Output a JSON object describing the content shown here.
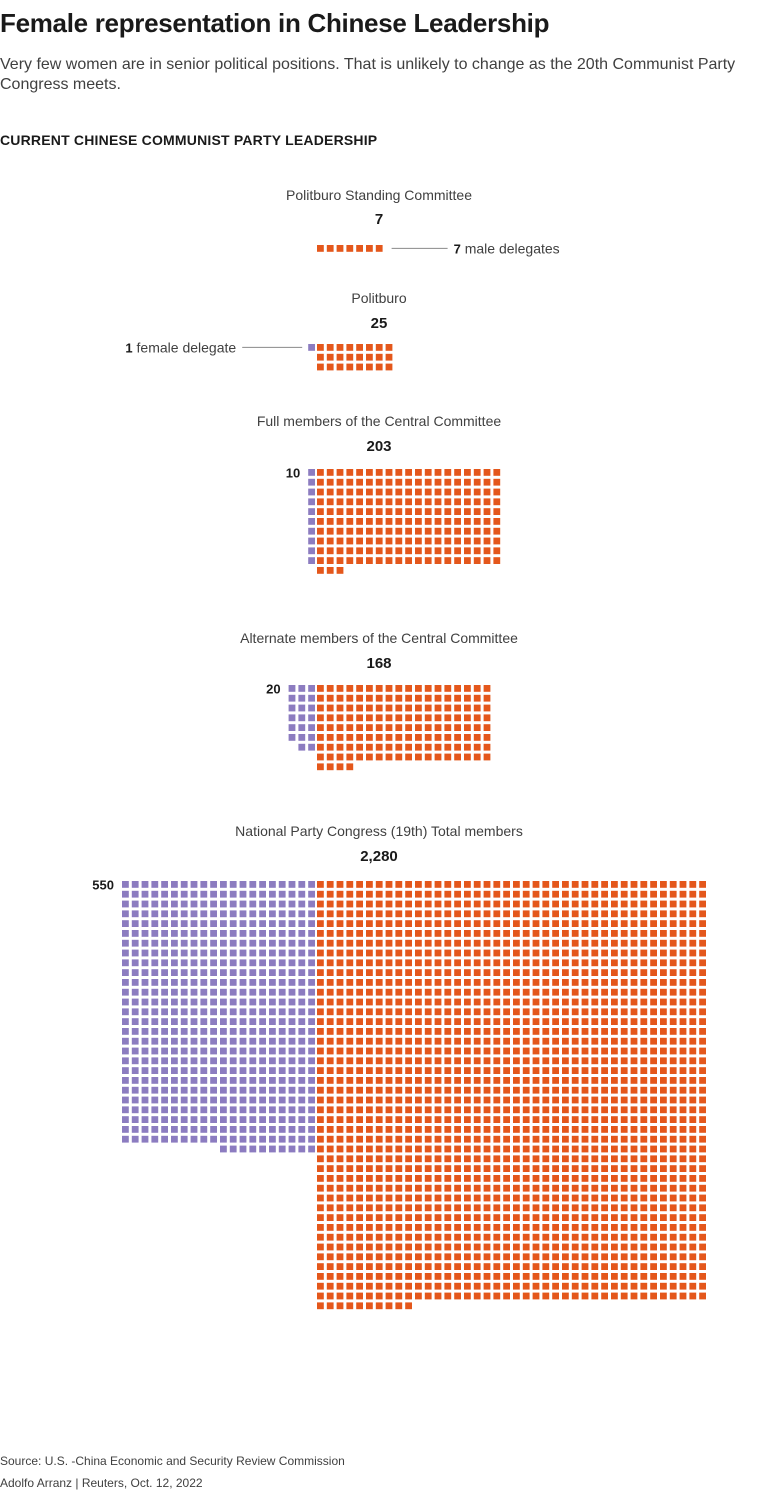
{
  "title": "Female representation in Chinese Leadership",
  "subtitle": "Very few women are in senior political positions. That is unlikely to change as the 20th Communist Party Congress meets.",
  "section_label": "CURRENT CHINESE COMMUNIST PARTY LEADERSHIP",
  "colors": {
    "female": "#8c7cc0",
    "male": "#e4571b",
    "connector": "#8a8a8a"
  },
  "chart_data": {
    "type": "waffle",
    "unit": "delegates",
    "groups": [
      {
        "name": "Politburo Standing Committee",
        "total": 7,
        "total_label": "7",
        "female": 0,
        "male": 7,
        "annotation": {
          "side": "male",
          "number": "7",
          "text": "male delegates"
        }
      },
      {
        "name": "Politburo",
        "total": 25,
        "total_label": "25",
        "female": 1,
        "male": 24,
        "annotation": {
          "side": "female",
          "number": "1",
          "text": "female delegate"
        }
      },
      {
        "name": "Full members of the Central Committee",
        "total": 203,
        "total_label": "203",
        "female": 10,
        "male": 193,
        "annotation": {
          "side": "female",
          "number": "10",
          "text": ""
        }
      },
      {
        "name": "Alternate members of the Central Committee",
        "total": 168,
        "total_label": "168",
        "female": 20,
        "male": 148,
        "annotation": {
          "side": "female",
          "number": "20",
          "text": ""
        }
      },
      {
        "name": "National Party Congress (19th) Total members",
        "total": 2280,
        "total_label": "2,280",
        "female": 550,
        "male": 1730,
        "annotation": {
          "side": "female",
          "number": "550",
          "text": ""
        }
      }
    ]
  },
  "footer": {
    "source": "Source: U.S. -China Economic and Security Review Commission",
    "credit": "Adolfo Arranz  |  Reuters, Oct. 12, 2022"
  }
}
